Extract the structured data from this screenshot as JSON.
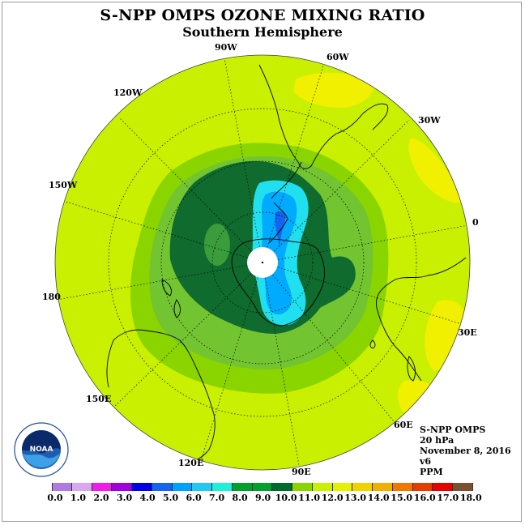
{
  "title": "S-NPP OMPS OZONE MIXING RATIO",
  "subtitle": "Southern Hemisphere",
  "longitude_labels": [
    {
      "text": "90W",
      "name": "lon-90w"
    },
    {
      "text": "60W",
      "name": "lon-60w"
    },
    {
      "text": "30W",
      "name": "lon-30w"
    },
    {
      "text": "0",
      "name": "lon-0"
    },
    {
      "text": "30E",
      "name": "lon-30e"
    },
    {
      "text": "60E",
      "name": "lon-60e"
    },
    {
      "text": "90E",
      "name": "lon-90e"
    },
    {
      "text": "120E",
      "name": "lon-120e"
    },
    {
      "text": "150E",
      "name": "lon-150e"
    },
    {
      "text": "180",
      "name": "lon-180"
    },
    {
      "text": "150W",
      "name": "lon-150w"
    },
    {
      "text": "120W",
      "name": "lon-120w"
    }
  ],
  "info": {
    "instrument": "S-NPP OMPS",
    "level": "20 hPa",
    "date": "November 8, 2016",
    "version": "v6",
    "units": "PPM"
  },
  "logo": {
    "text": "NOAA",
    "icon": "noaa-logo-icon"
  },
  "colorbar": {
    "colors": [
      "#b07be0",
      "#d9a6f0",
      "#ee1ee8",
      "#a000e0",
      "#0000e6",
      "#1464f0",
      "#00a0ff",
      "#22c8f0",
      "#20f0d8",
      "#00a030",
      "#00a030",
      "#006a2e",
      "#8ad400",
      "#c8f000",
      "#e6f000",
      "#f0d200",
      "#f0b000",
      "#f07800",
      "#e63c00",
      "#e60000",
      "#7a5030"
    ],
    "ticks": [
      "0.0",
      "1.0",
      "2.0",
      "3.0",
      "4.0",
      "5.0",
      "6.0",
      "7.0",
      "8.0",
      "9.0",
      "10.0",
      "11.0",
      "12.0",
      "13.0",
      "14.0",
      "15.0",
      "16.0",
      "17.0",
      "18.0"
    ]
  }
}
